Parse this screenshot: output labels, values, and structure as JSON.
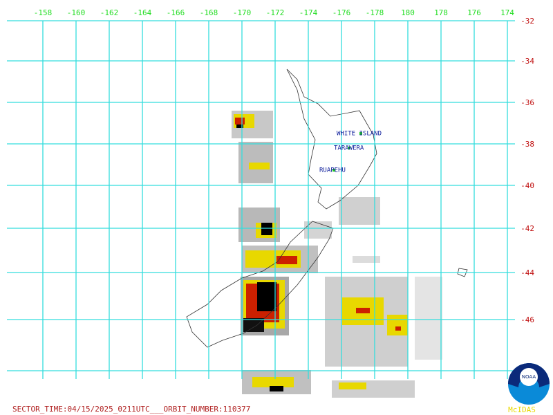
{
  "lon_labels": [
    "-158",
    "-160",
    "-162",
    "-164",
    "-166",
    "-168",
    "-170",
    "-172",
    "-174",
    "-176",
    "-178",
    "180",
    "178",
    "176",
    "174"
  ],
  "lat_labels": [
    "-32",
    "-34",
    "-36",
    "-38",
    "-40",
    "-42",
    "-44",
    "-46"
  ],
  "volcanoes": [
    "WHITE ISLAND",
    "TARAWERA",
    "RUAPEHU"
  ],
  "footer": {
    "sector_time": "SECTOR_TIME:04/15/2025_0211UTC___ORBIT_NUMBER:110377"
  },
  "logo": {
    "noaa": "NOAA",
    "mcidas": "McIDAS"
  }
}
